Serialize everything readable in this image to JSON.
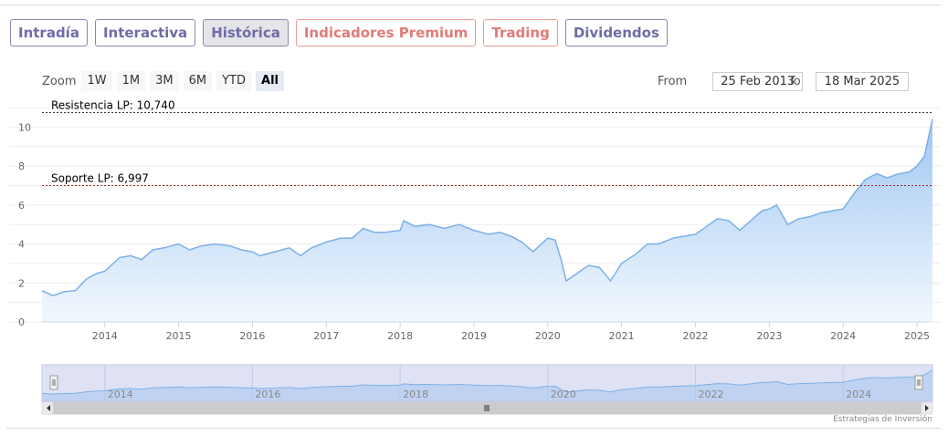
{
  "tabs": [
    {
      "label": "Intradía",
      "style": "normal"
    },
    {
      "label": "Interactiva",
      "style": "normal"
    },
    {
      "label": "Histórica",
      "style": "active"
    },
    {
      "label": "Indicadores Premium",
      "style": "premium"
    },
    {
      "label": "Trading",
      "style": "premium"
    },
    {
      "label": "Dividendos",
      "style": "normal"
    }
  ],
  "zoom": {
    "label": "Zoom",
    "buttons": [
      "1W",
      "1M",
      "3M",
      "6M",
      "YTD",
      "All"
    ],
    "active": "All"
  },
  "range": {
    "from_label": "From",
    "from_value": "25 Feb 2013",
    "to_label": "To",
    "to_value": "18 Mar 2025"
  },
  "credits": "Estrategias de Inversión",
  "colors": {
    "line": "#7cb0e8",
    "fill_top": "#9ec7f2",
    "fill_bottom": "#f3f8fe",
    "nav_mask": "#dfe2f4"
  },
  "chart_data": {
    "type": "area",
    "title": "",
    "xlabel": "",
    "ylabel": "",
    "ylim": [
      0,
      11
    ],
    "yticks": [
      0,
      2,
      4,
      6,
      8,
      10
    ],
    "xlim": [
      2013.15,
      2025.21
    ],
    "xticks": [
      "2014",
      "2015",
      "2016",
      "2017",
      "2018",
      "2019",
      "2020",
      "2021",
      "2022",
      "2023",
      "2024",
      "2025"
    ],
    "grid": true,
    "plot_lines": [
      {
        "label": "Resistencia LP: 10,740",
        "value": 10.74,
        "color": "#2e2e2e",
        "style": "dashed"
      },
      {
        "label": "Soporte LP: 6,997",
        "value": 6.997,
        "color": "#9a2020",
        "style": "dashed"
      }
    ],
    "navigator": {
      "xticks": [
        "2014",
        "2016",
        "2018",
        "2020",
        "2022",
        "2024"
      ]
    },
    "series": [
      {
        "x": [
          2013.15,
          2013.3,
          2013.45,
          2013.6,
          2013.75,
          2013.9,
          2014.0,
          2014.2,
          2014.35,
          2014.5,
          2014.65,
          2014.8,
          2015.0,
          2015.15,
          2015.3,
          2015.5,
          2015.7,
          2015.85,
          2016.0,
          2016.1,
          2016.3,
          2016.5,
          2016.65,
          2016.8,
          2017.0,
          2017.2,
          2017.35,
          2017.5,
          2017.65,
          2017.8,
          2018.0,
          2018.05,
          2018.2,
          2018.4,
          2018.6,
          2018.8,
          2019.0,
          2019.2,
          2019.35,
          2019.5,
          2019.65,
          2019.8,
          2020.0,
          2020.1,
          2020.18,
          2020.25,
          2020.4,
          2020.55,
          2020.7,
          2020.85,
          2021.0,
          2021.2,
          2021.35,
          2021.5,
          2021.7,
          2021.85,
          2022.0,
          2022.15,
          2022.3,
          2022.45,
          2022.6,
          2022.75,
          2022.9,
          2023.0,
          2023.1,
          2023.25,
          2023.4,
          2023.55,
          2023.7,
          2023.85,
          2024.0,
          2024.15,
          2024.3,
          2024.45,
          2024.6,
          2024.75,
          2024.9,
          2025.0,
          2025.1,
          2025.21
        ],
        "values": [
          1.6,
          1.35,
          1.55,
          1.6,
          2.2,
          2.5,
          2.6,
          3.3,
          3.4,
          3.2,
          3.7,
          3.8,
          4.0,
          3.7,
          3.9,
          4.0,
          3.9,
          3.7,
          3.6,
          3.4,
          3.6,
          3.8,
          3.4,
          3.8,
          4.1,
          4.3,
          4.3,
          4.8,
          4.6,
          4.6,
          4.7,
          5.2,
          4.9,
          5.0,
          4.8,
          5.0,
          4.7,
          4.5,
          4.6,
          4.4,
          4.1,
          3.6,
          4.3,
          4.2,
          3.2,
          2.1,
          2.5,
          2.9,
          2.8,
          2.1,
          3.0,
          3.5,
          4.0,
          4.0,
          4.3,
          4.4,
          4.5,
          4.9,
          5.3,
          5.2,
          4.7,
          5.2,
          5.7,
          5.8,
          6.0,
          5.0,
          5.3,
          5.4,
          5.6,
          5.7,
          5.8,
          6.6,
          7.3,
          7.6,
          7.4,
          7.6,
          7.7,
          8.0,
          8.5,
          10.4
        ]
      }
    ]
  }
}
